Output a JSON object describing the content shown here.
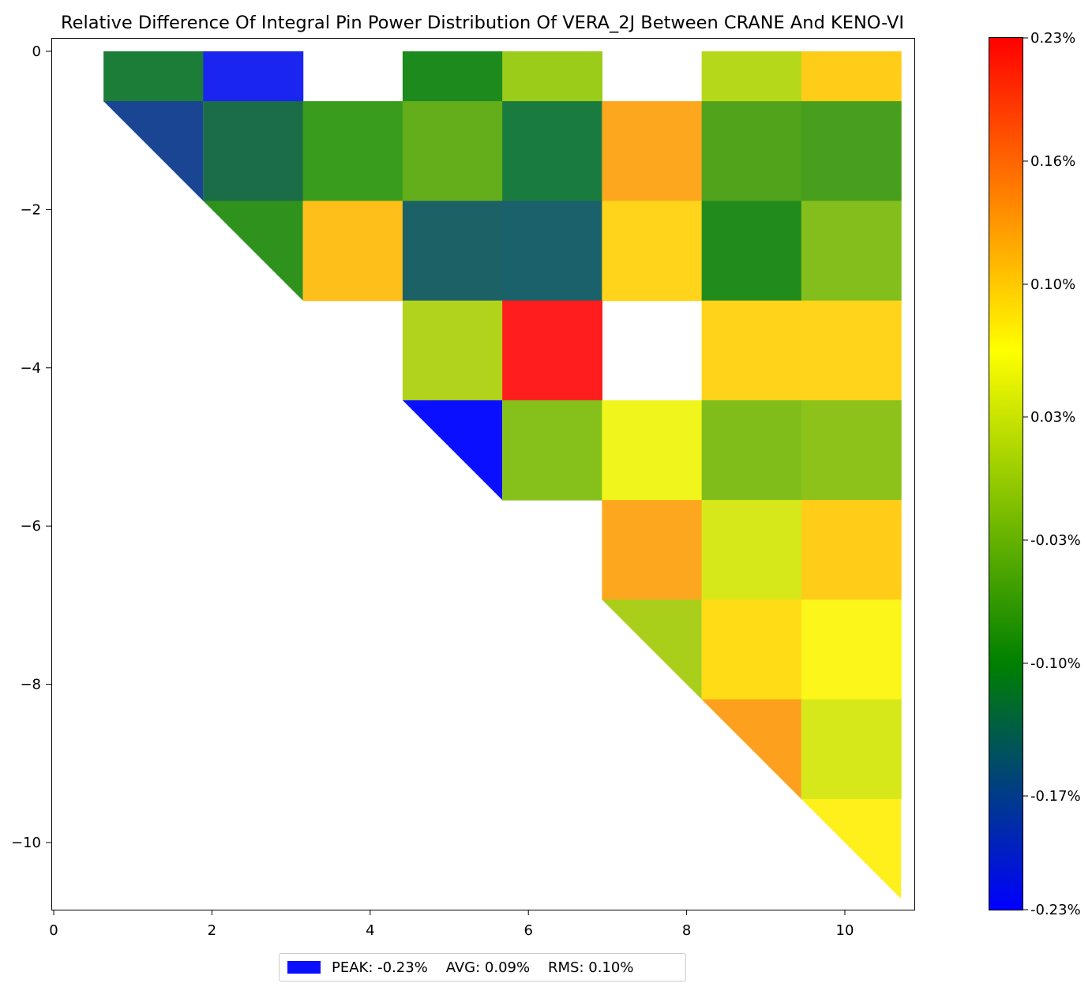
{
  "chart_data": {
    "type": "heatmap",
    "title": "Relative Difference Of Integral Pin Power Distribution Of VERA_2J Between CRANE And KENO-VI",
    "xlabel": "",
    "ylabel": "",
    "xlim": [
      0,
      10.8
    ],
    "ylim": [
      -10.8,
      0
    ],
    "x_ticks": [
      "0",
      "2",
      "4",
      "6",
      "8",
      "10"
    ],
    "y_ticks": [
      "0",
      "−2",
      "−4",
      "−6",
      "−8",
      "−10"
    ],
    "grid": false,
    "cell_pitch": 1.26,
    "colormap": {
      "min": -0.23,
      "max": 0.23,
      "stops": [
        {
          "value": -0.23,
          "color": "#0000ff"
        },
        {
          "value": -0.1,
          "color": "#008000"
        },
        {
          "value": 0.065,
          "color": "#ffff00"
        },
        {
          "value": 0.23,
          "color": "#ff0000"
        }
      ],
      "tick_labels": [
        "0.23%",
        "0.16%",
        "0.10%",
        "0.03%",
        "-0.03%",
        "-0.10%",
        "-0.17%",
        "-0.23%"
      ],
      "tick_values": [
        0.23,
        0.165,
        0.1,
        0.03,
        -0.035,
        -0.1,
        -0.17,
        -0.23
      ]
    },
    "cells": [
      {
        "row": 0,
        "col": 1,
        "value": -0.08,
        "color": "#1b7d37",
        "shape": "rect"
      },
      {
        "row": 0,
        "col": 2,
        "value": -0.23,
        "color": "#1a25f0",
        "shape": "rect"
      },
      {
        "row": 0,
        "col": 4,
        "value": -0.07,
        "color": "#1c8a1c",
        "shape": "rect"
      },
      {
        "row": 0,
        "col": 5,
        "value": 0.02,
        "color": "#9ccc1a",
        "shape": "rect"
      },
      {
        "row": 0,
        "col": 7,
        "value": 0.03,
        "color": "#b5d81b",
        "shape": "rect"
      },
      {
        "row": 0,
        "col": 8,
        "value": 0.1,
        "color": "#ffcc17",
        "shape": "rect"
      },
      {
        "row": 1,
        "col": 1,
        "value": -0.18,
        "color": "#1a4593",
        "shape": "tri"
      },
      {
        "row": 1,
        "col": 2,
        "value": -0.13,
        "color": "#1a6d46",
        "shape": "rect"
      },
      {
        "row": 1,
        "col": 3,
        "value": -0.04,
        "color": "#3a9c1c",
        "shape": "rect"
      },
      {
        "row": 1,
        "col": 4,
        "value": -0.02,
        "color": "#63ae1a",
        "shape": "rect"
      },
      {
        "row": 1,
        "col": 5,
        "value": -0.12,
        "color": "#1a7b3f",
        "shape": "rect"
      },
      {
        "row": 1,
        "col": 6,
        "value": 0.13,
        "color": "#fda71f",
        "shape": "rect"
      },
      {
        "row": 1,
        "col": 7,
        "value": -0.03,
        "color": "#52a31c",
        "shape": "rect"
      },
      {
        "row": 1,
        "col": 8,
        "value": -0.04,
        "color": "#489f1d",
        "shape": "rect"
      },
      {
        "row": 2,
        "col": 2,
        "value": -0.06,
        "color": "#2e921c",
        "shape": "tri"
      },
      {
        "row": 2,
        "col": 3,
        "value": 0.1,
        "color": "#ffbf1a",
        "shape": "rect"
      },
      {
        "row": 2,
        "col": 4,
        "value": -0.16,
        "color": "#1c6166",
        "shape": "rect"
      },
      {
        "row": 2,
        "col": 5,
        "value": -0.16,
        "color": "#1b616b",
        "shape": "rect"
      },
      {
        "row": 2,
        "col": 6,
        "value": 0.09,
        "color": "#ffd41a",
        "shape": "rect"
      },
      {
        "row": 2,
        "col": 7,
        "value": -0.07,
        "color": "#218c1c",
        "shape": "rect"
      },
      {
        "row": 2,
        "col": 8,
        "value": 0.0,
        "color": "#84be1d",
        "shape": "rect"
      },
      {
        "row": 3,
        "col": 4,
        "value": 0.03,
        "color": "#b1d31b",
        "shape": "rect"
      },
      {
        "row": 3,
        "col": 5,
        "value": 0.23,
        "color": "#ff1d1d",
        "shape": "rect"
      },
      {
        "row": 3,
        "col": 7,
        "value": 0.09,
        "color": "#ffd31a",
        "shape": "rect"
      },
      {
        "row": 3,
        "col": 8,
        "value": 0.09,
        "color": "#ffd41a",
        "shape": "rect"
      },
      {
        "row": 4,
        "col": 4,
        "value": -0.23,
        "color": "#0a10ff",
        "shape": "tri"
      },
      {
        "row": 4,
        "col": 5,
        "value": 0.0,
        "color": "#86c01a",
        "shape": "rect"
      },
      {
        "row": 4,
        "col": 6,
        "value": 0.06,
        "color": "#f0f61b",
        "shape": "rect"
      },
      {
        "row": 4,
        "col": 7,
        "value": -0.01,
        "color": "#80bd1b",
        "shape": "rect"
      },
      {
        "row": 4,
        "col": 8,
        "value": 0.0,
        "color": "#8dc21b",
        "shape": "rect"
      },
      {
        "row": 5,
        "col": 6,
        "value": 0.13,
        "color": "#fda71f",
        "shape": "rect"
      },
      {
        "row": 5,
        "col": 7,
        "value": 0.04,
        "color": "#d7e81a",
        "shape": "rect"
      },
      {
        "row": 5,
        "col": 8,
        "value": 0.1,
        "color": "#ffcc17",
        "shape": "rect"
      },
      {
        "row": 6,
        "col": 6,
        "value": 0.02,
        "color": "#a9cf1b",
        "shape": "tri"
      },
      {
        "row": 6,
        "col": 7,
        "value": 0.09,
        "color": "#ffdc16",
        "shape": "rect"
      },
      {
        "row": 6,
        "col": 8,
        "value": 0.07,
        "color": "#fcf61a",
        "shape": "rect"
      },
      {
        "row": 7,
        "col": 7,
        "value": 0.13,
        "color": "#fca01e",
        "shape": "tri"
      },
      {
        "row": 7,
        "col": 8,
        "value": 0.04,
        "color": "#d6e81a",
        "shape": "rect"
      },
      {
        "row": 8,
        "col": 8,
        "value": 0.07,
        "color": "#ffef1a",
        "shape": "tri"
      }
    ],
    "legend": {
      "placement": "bottom-center",
      "swatch_color": "#0a10ff",
      "peak": "PEAK: -0.23%",
      "avg": "AVG: 0.09%",
      "rms": "RMS: 0.10%"
    }
  }
}
